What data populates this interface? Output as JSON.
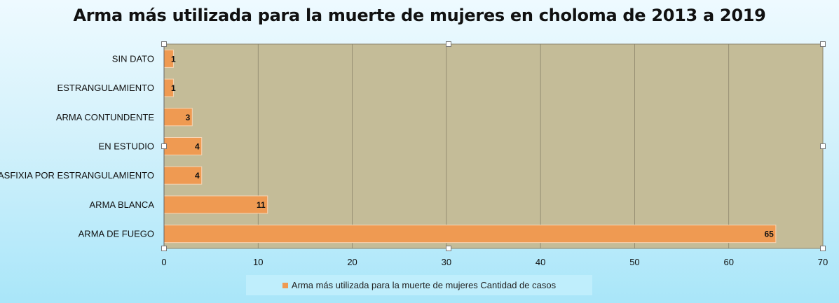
{
  "chart_data": {
    "type": "bar",
    "orientation": "horizontal",
    "title": "Arma más utilizada para la muerte de mujeres en choloma de 2013 a 2019",
    "categories": [
      "SIN DATO",
      "ESTRANGULAMIENTO",
      "ARMA CONTUNDENTE",
      "EN ESTUDIO",
      "ASFIXIA POR ESTRANGULAMIENTO",
      "ARMA BLANCA",
      "ARMA DE FUEGO"
    ],
    "series": [
      {
        "name": "Arma más utilizada para la muerte de mujeres Cantidad de casos",
        "values": [
          1,
          1,
          3,
          4,
          4,
          11,
          65
        ]
      }
    ],
    "xlim": [
      0,
      70
    ],
    "x_ticks": [
      "0",
      "10",
      "20",
      "30",
      "40",
      "50",
      "60",
      "70"
    ],
    "grid": true,
    "legend_position": "bottom",
    "bar_color": "#ef9a52",
    "plot_background": "#c4bc98"
  }
}
